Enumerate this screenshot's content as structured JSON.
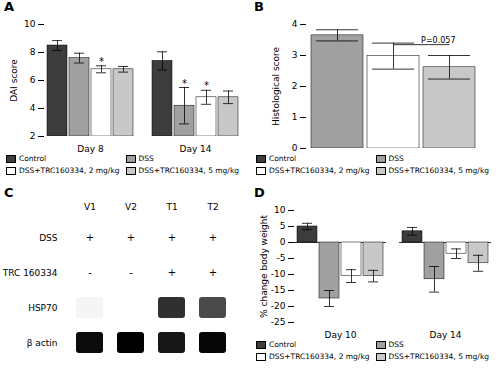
{
  "chart_data": [
    {
      "type": "bar",
      "title": "A",
      "categories": [
        "Day 8",
        "Day 14"
      ],
      "series": [
        {
          "name": "Control",
          "color": "#3c3c3c",
          "values": [
            8.5,
            7.4
          ],
          "errors": [
            0.35,
            0.65
          ]
        },
        {
          "name": "DSS",
          "color": "#a0a0a0",
          "values": [
            7.6,
            4.2
          ],
          "errors": [
            0.35,
            1.3
          ]
        },
        {
          "name": "DSS+TRC160334, 2 mg/kg",
          "color": "#ffffff",
          "values": [
            6.8,
            4.8
          ],
          "errors": [
            0.25,
            0.5
          ]
        },
        {
          "name": "DSS+TRC160334, 5 mg/kg",
          "color": "#c8c8c8",
          "values": [
            6.8,
            4.8
          ],
          "errors": [
            0.2,
            0.45
          ]
        }
      ],
      "ylabel": "DAI score",
      "ylim": [
        2,
        10
      ],
      "yticks": [
        2,
        4,
        6,
        8,
        10
      ],
      "legend": "bottom",
      "annotations": [
        {
          "category": "Day 8",
          "series": "DSS+TRC160334, 2 mg/kg",
          "text": "*"
        },
        {
          "category": "Day 14",
          "series": "DSS",
          "text": "*"
        },
        {
          "category": "Day 14",
          "series": "DSS+TRC160334, 2 mg/kg",
          "text": "*"
        }
      ]
    },
    {
      "type": "bar",
      "title": "B",
      "categories": [
        null
      ],
      "series": [
        {
          "name": "Control",
          "color": "#3c3c3c",
          "values": [
            null
          ],
          "errors": [
            null
          ]
        },
        {
          "name": "DSS",
          "color": "#a0a0a0",
          "values": [
            3.65
          ],
          "errors": [
            0.18
          ]
        },
        {
          "name": "DSS+TRC160334, 2 mg/kg",
          "color": "#ffffff",
          "values": [
            2.98
          ],
          "errors": [
            0.42
          ]
        },
        {
          "name": "DSS+TRC160334, 5 mg/kg",
          "color": "#c8c8c8",
          "values": [
            2.62
          ],
          "errors": [
            0.38
          ]
        }
      ],
      "ylabel": "Histological score",
      "ylim": [
        0,
        4
      ],
      "yticks": [
        0,
        1,
        2,
        3,
        4
      ],
      "tick_labels": "y",
      "legend": "bottom",
      "annotations": [
        {
          "text": "P=0.057",
          "y": 3.35,
          "from": "DSS+TRC160334, 2 mg/kg",
          "to": "DSS+TRC160334, 5 mg/kg"
        }
      ]
    },
    {
      "type": "heatmap",
      "title": "C",
      "x": [
        "V1",
        "V2",
        "T1",
        "T2"
      ],
      "y": [
        "HSP70",
        "β actin"
      ],
      "values": [
        [
          0.22,
          0.18,
          0.62,
          0.58
        ],
        [
          0.68,
          0.7,
          0.66,
          0.69
        ]
      ],
      "annotations": [
        {
          "text": "DSS",
          "values": [
            "+",
            "+",
            "+",
            "+"
          ]
        },
        {
          "text": "TRC 160334",
          "values": [
            "-",
            "-",
            "+",
            "+"
          ]
        }
      ]
    },
    {
      "type": "bar",
      "title": "D",
      "categories": [
        "Day 10",
        "Day 14"
      ],
      "series": [
        {
          "name": "Control",
          "color": "#3c3c3c",
          "values": [
            5.0,
            3.5
          ],
          "errors": [
            1.0,
            1.2
          ]
        },
        {
          "name": "DSS",
          "color": "#a0a0a0",
          "values": [
            -17.5,
            -11.5
          ],
          "errors": [
            2.5,
            4.0
          ]
        },
        {
          "name": "DSS+TRC160334, 2 mg/kg",
          "color": "#ffffff",
          "values": [
            -10.5,
            -3.5
          ],
          "errors": [
            2.0,
            1.5
          ]
        },
        {
          "name": "DSS+TRC160334, 5 mg/kg",
          "color": "#c8c8c8",
          "values": [
            -10.5,
            -6.5
          ],
          "errors": [
            1.8,
            2.5
          ]
        }
      ],
      "ylabel": "% change body weight",
      "ylim": [
        -25,
        10
      ],
      "yticks": [
        -25,
        -20,
        -15,
        -10,
        -5,
        0,
        5,
        10
      ],
      "legend": "bottom"
    }
  ]
}
